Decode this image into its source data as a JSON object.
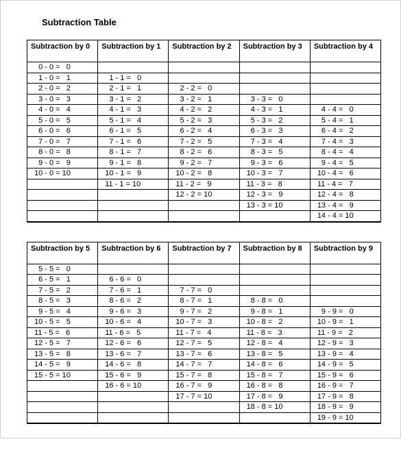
{
  "title": "Subtraction Table",
  "layout": {
    "rows_per_column": 15,
    "col_count": 5,
    "cell_font_size": 11,
    "header_font_size": 11
  },
  "tables": [
    {
      "columns": [
        {
          "header": "Subtraction by 0",
          "cells": [
            "  0 - 0 =   0",
            "  1 - 0 =   1",
            "  2 - 0 =   2",
            "  3 - 0 =   3",
            "  4 - 0 =   4",
            "  5 - 0 =   5",
            "  6 - 0 =   6",
            "  7 - 0 =   7",
            "  8 - 0 =   8",
            "  9 - 0 =   9",
            "10 - 0 = 10",
            "",
            "",
            "",
            ""
          ]
        },
        {
          "header": "Subtraction by 1",
          "cells": [
            "",
            "  1 - 1 =   0",
            "  2 - 1 =   1",
            "  3 - 1 =   2",
            "  4 - 1 =   3",
            "  5 - 1 =   4",
            "  6 - 1 =   5",
            "  7 - 1 =   6",
            "  8 - 1 =   7",
            "  9 - 1 =   8",
            "10 - 1 =   9",
            "11 - 1 = 10",
            "",
            "",
            ""
          ]
        },
        {
          "header": "Subtraction by 2",
          "cells": [
            "",
            "",
            "  2 - 2 =   0",
            "  3 - 2 =   1",
            "  4 - 2 =   2",
            "  5 - 2 =   3",
            "  6 - 2 =   4",
            "  7 - 2 =   5",
            "  8 - 2 =   6",
            "  9 - 2 =   7",
            "10 - 2 =   8",
            "11 - 2 =   9",
            "12 - 2 = 10",
            "",
            ""
          ]
        },
        {
          "header": "Subtraction by 3",
          "cells": [
            "",
            "",
            "",
            "  3 - 3 =   0",
            "  4 - 3 =   1",
            "  5 - 3 =   2",
            "  6 - 3 =   3",
            "  7 - 3 =   4",
            "  8 - 3 =   5",
            "  9 - 3 =   6",
            "10 - 3 =   7",
            "11 - 3 =   8",
            "12 - 3 =   9",
            "13 - 3 = 10",
            ""
          ]
        },
        {
          "header": "Subtraction by 4",
          "cells": [
            "",
            "",
            "",
            "",
            "  4 - 4 =   0",
            "  5 - 4 =   1",
            "  6 - 4 =   2",
            "  7 - 4 =   3",
            "  8 - 4 =   4",
            "  9 - 4 =   5",
            "10 - 4 =   6",
            "11 - 4 =   7",
            "12 - 4 =   8",
            "13 - 4 =   9",
            "14 - 4 = 10"
          ]
        }
      ]
    },
    {
      "columns": [
        {
          "header": "Subtraction by 5",
          "cells": [
            "  5 - 5 =   0",
            "  6 - 5 =   1",
            "  7 - 5 =   2",
            "  8 - 5 =   3",
            "  9 - 5 =   4",
            "10 - 5 =   5",
            "11 - 5 =   6",
            "12 - 5 =   7",
            "13 - 5 =   8",
            "14 - 5 =   9",
            "15 - 5 = 10",
            "",
            "",
            "",
            ""
          ]
        },
        {
          "header": "Subtraction by 6",
          "cells": [
            "",
            "  6 - 6 =   0",
            "  7 - 6 =   1",
            "  8 - 6 =   2",
            "  9 - 6 =   3",
            "10 - 6 =   4",
            "11 - 6 =   5",
            "12 - 6 =   6",
            "13 - 6 =   7",
            "14 - 6 =   8",
            "15 - 6 =   9",
            "16 - 6 = 10",
            "",
            "",
            ""
          ]
        },
        {
          "header": "Subtraction by 7",
          "cells": [
            "",
            "",
            "  7 - 7 =   0",
            "  8 - 7 =   1",
            "  9 - 7 =   2",
            "10 - 7 =   3",
            "11 - 7 =   4",
            "12 - 7 =   5",
            "13 - 7 =   6",
            "14 - 7 =   7",
            "15 - 7 =   8",
            "16 - 7 =   9",
            "17 - 7 = 10",
            "",
            ""
          ]
        },
        {
          "header": "Subtraction by 8",
          "cells": [
            "",
            "",
            "",
            "  8 - 8 =   0",
            "  9 - 8 =   1",
            "10 - 8 =   2",
            "11 - 8 =   3",
            "12 - 8 =   4",
            "13 - 8 =   5",
            "14 - 8 =   6",
            "15 - 8 =   7",
            "16 - 8 =   8",
            "17 - 8 =   9",
            "18 - 8 = 10",
            ""
          ]
        },
        {
          "header": "Subtraction by 9",
          "cells": [
            "",
            "",
            "",
            "",
            "  9 - 9 =   0",
            "10 - 9 =   1",
            "11 - 9 =   2",
            "12 - 9 =   3",
            "13 - 9 =   4",
            "14 - 9 =   5",
            "15 - 9 =   6",
            "16 - 9 =   7",
            "17 - 9 =   8",
            "18 - 9 =   9",
            "19 - 9 = 10"
          ]
        }
      ]
    }
  ]
}
